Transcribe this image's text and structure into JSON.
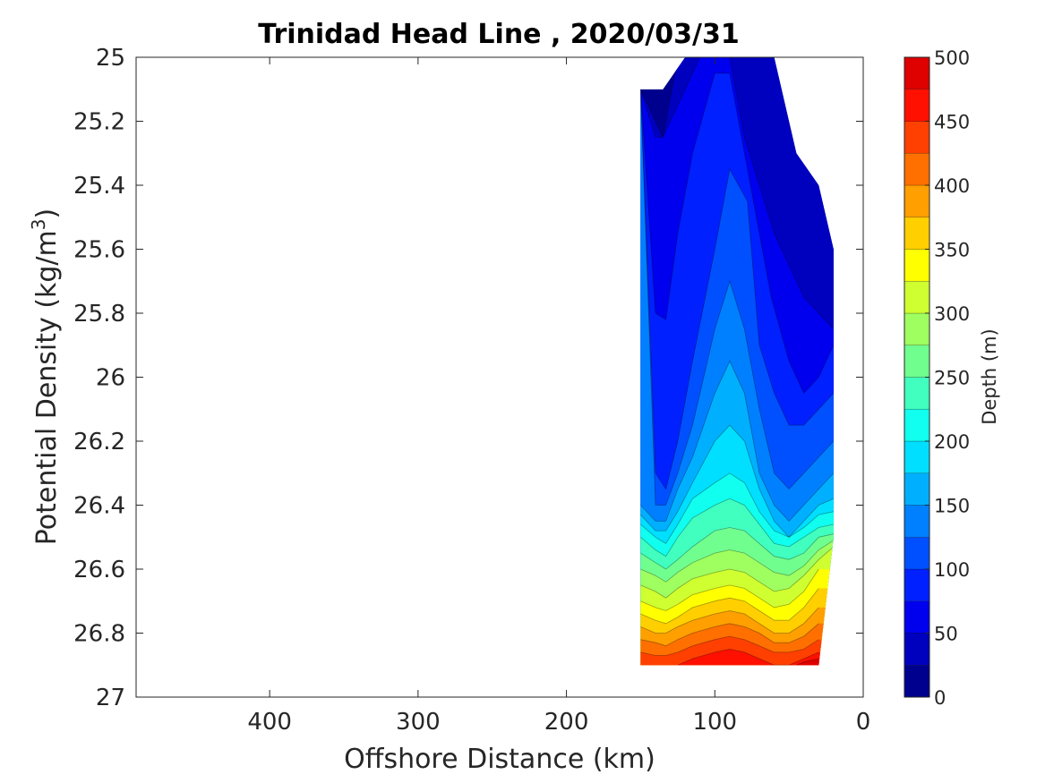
{
  "chart_data": {
    "type": "contour",
    "title": "Trinidad Head Line , 2020/03/31",
    "xlabel": "Offshore Distance (km)",
    "ylabel_main": "Potential Density (kg/m",
    "ylabel_sup": "3",
    "ylabel_end": ")",
    "xlim": [
      490,
      0
    ],
    "x_reversed": true,
    "ylim": [
      25,
      27
    ],
    "y_reversed": true,
    "xticks": [
      400,
      300,
      200,
      100,
      0
    ],
    "xtick_labels": [
      "400",
      "300",
      "200",
      "100",
      "0"
    ],
    "yticks": [
      25,
      25.2,
      25.4,
      25.6,
      25.8,
      26,
      26.2,
      26.4,
      26.6,
      26.8,
      27
    ],
    "ytick_labels": [
      "25",
      "25.2",
      "25.4",
      "25.6",
      "25.8",
      "26",
      "26.2",
      "26.4",
      "26.6",
      "26.8",
      "27"
    ],
    "colorbar": {
      "label": "Depth (m)",
      "min": 0,
      "max": 500,
      "ticks": [
        0,
        50,
        100,
        150,
        200,
        250,
        300,
        350,
        400,
        450,
        500
      ],
      "tick_labels": [
        "0",
        "50",
        "100",
        "150",
        "200",
        "250",
        "300",
        "350",
        "400",
        "450",
        "500"
      ],
      "level_step": 25,
      "colormap": "jet",
      "colors": [
        "#00008f",
        "#0000bf",
        "#0000ef",
        "#0020ff",
        "#0050ff",
        "#0080ff",
        "#00b0ff",
        "#00dfff",
        "#10ffef",
        "#40ffbf",
        "#70ff8f",
        "#9fff60",
        "#cfff30",
        "#ffff00",
        "#ffcf00",
        "#ff9f00",
        "#ff7000",
        "#ff4000",
        "#ff1000",
        "#df0000",
        "#af0000"
      ]
    },
    "data_region": {
      "x_offshore_km": [
        150,
        135,
        120,
        105,
        90,
        75,
        60,
        45,
        30,
        20
      ],
      "density_top": [
        25.1,
        25.1,
        25.0,
        25.0,
        25.0,
        25.0,
        25.0,
        25.3,
        25.4,
        25.6
      ],
      "density_bottom": [
        26.9,
        26.9,
        26.9,
        26.9,
        26.9,
        26.9,
        26.9,
        26.9,
        26.9,
        26.5
      ]
    },
    "contour_lines": [
      {
        "depth": 25,
        "x": [
          150,
          135,
          125,
          110,
          100,
          90,
          80,
          70,
          60,
          50,
          40,
          30,
          20
        ],
        "density": [
          25.1,
          25.25,
          25.0,
          25.0,
          25.0,
          25.0,
          25.0,
          25.0,
          25.0,
          25.0,
          25.0,
          25.0,
          25.0
        ]
      },
      {
        "depth": 50,
        "x": [
          150,
          140,
          135,
          125,
          110,
          95,
          90,
          80,
          70,
          60,
          50,
          40,
          30,
          20
        ],
        "density": [
          25.1,
          25.25,
          25.25,
          25.15,
          25.0,
          25.0,
          25.0,
          25.25,
          25.4,
          25.55,
          25.65,
          25.75,
          25.8,
          25.85
        ]
      },
      {
        "depth": 75,
        "x": [
          150,
          140,
          133,
          125,
          115,
          100,
          90,
          82,
          72,
          62,
          50,
          40,
          30,
          20
        ],
        "density": [
          25.1,
          25.8,
          25.82,
          25.55,
          25.3,
          25.05,
          25.05,
          25.25,
          25.5,
          25.75,
          25.95,
          26.05,
          26.0,
          25.9
        ]
      },
      {
        "depth": 100,
        "x": [
          150,
          140,
          133,
          125,
          115,
          100,
          90,
          78,
          70,
          60,
          50,
          40,
          30,
          20
        ],
        "density": [
          25.1,
          26.3,
          26.35,
          26.2,
          25.95,
          25.6,
          25.35,
          25.45,
          25.9,
          26.05,
          26.15,
          26.15,
          26.1,
          26.05
        ]
      },
      {
        "depth": 125,
        "x": [
          150,
          140,
          133,
          125,
          115,
          100,
          90,
          80,
          70,
          60,
          50,
          40,
          30,
          20
        ],
        "density": [
          25.1,
          26.4,
          26.4,
          26.3,
          26.15,
          25.85,
          25.7,
          25.85,
          26.1,
          26.3,
          26.35,
          26.3,
          26.25,
          26.2
        ]
      },
      {
        "depth": 150,
        "x": [
          150,
          140,
          133,
          125,
          115,
          100,
          90,
          80,
          70,
          60,
          50,
          40,
          30,
          20
        ],
        "density": [
          26.4,
          26.45,
          26.45,
          26.35,
          26.25,
          26.05,
          25.95,
          26.05,
          26.3,
          26.4,
          26.45,
          26.4,
          26.35,
          26.3
        ]
      },
      {
        "depth": 175,
        "x": [
          150,
          140,
          133,
          125,
          115,
          100,
          90,
          80,
          70,
          60,
          50,
          40,
          30,
          20
        ],
        "density": [
          26.43,
          26.48,
          26.48,
          26.42,
          26.33,
          26.2,
          26.15,
          26.2,
          26.35,
          26.45,
          26.5,
          26.45,
          26.4,
          26.38
        ]
      },
      {
        "depth": 200,
        "x": [
          150,
          140,
          133,
          125,
          115,
          100,
          90,
          80,
          70,
          60,
          50,
          40,
          30,
          20
        ],
        "density": [
          26.46,
          26.5,
          26.52,
          26.46,
          26.38,
          26.33,
          26.3,
          26.33,
          26.42,
          26.48,
          26.5,
          26.47,
          26.43,
          26.42
        ]
      },
      {
        "depth": 225,
        "x": [
          150,
          140,
          133,
          125,
          115,
          100,
          90,
          80,
          70,
          60,
          50,
          40,
          30,
          20
        ],
        "density": [
          26.5,
          26.54,
          26.56,
          26.5,
          26.44,
          26.4,
          26.38,
          26.4,
          26.46,
          26.52,
          26.53,
          26.5,
          26.47,
          26.46
        ]
      },
      {
        "depth": 250,
        "x": [
          150,
          140,
          133,
          125,
          115,
          100,
          90,
          80,
          70,
          60,
          50,
          40,
          30,
          20
        ],
        "density": [
          26.55,
          26.58,
          26.6,
          26.57,
          26.53,
          26.48,
          26.47,
          26.48,
          26.52,
          26.56,
          26.57,
          26.55,
          26.5,
          26.49
        ]
      },
      {
        "depth": 275,
        "x": [
          150,
          140,
          133,
          125,
          115,
          100,
          90,
          80,
          70,
          60,
          50,
          40,
          30,
          20
        ],
        "density": [
          26.6,
          26.62,
          26.64,
          26.61,
          26.58,
          26.55,
          26.54,
          26.55,
          26.58,
          26.61,
          26.62,
          26.59,
          26.54,
          26.51
        ]
      },
      {
        "depth": 300,
        "x": [
          150,
          140,
          133,
          125,
          115,
          100,
          90,
          80,
          70,
          60,
          50,
          40,
          30,
          20
        ],
        "density": [
          26.65,
          26.67,
          26.69,
          26.66,
          26.63,
          26.61,
          26.6,
          26.61,
          26.64,
          26.67,
          26.66,
          26.62,
          26.57,
          26.53
        ]
      },
      {
        "depth": 325,
        "x": [
          150,
          140,
          133,
          125,
          115,
          100,
          90,
          80,
          70,
          60,
          50,
          40,
          30
        ],
        "density": [
          26.7,
          26.72,
          26.73,
          26.71,
          26.68,
          26.66,
          26.65,
          26.66,
          26.69,
          26.72,
          26.71,
          26.67,
          26.6
        ]
      },
      {
        "depth": 350,
        "x": [
          150,
          140,
          133,
          125,
          115,
          100,
          90,
          80,
          70,
          60,
          50,
          40,
          30
        ],
        "density": [
          26.74,
          26.76,
          26.77,
          26.75,
          26.72,
          26.7,
          26.69,
          26.7,
          26.73,
          26.76,
          26.76,
          26.72,
          26.66
        ]
      },
      {
        "depth": 375,
        "x": [
          150,
          140,
          133,
          125,
          115,
          100,
          90,
          80,
          70,
          60,
          50,
          40,
          30
        ],
        "density": [
          26.78,
          26.8,
          26.8,
          26.78,
          26.76,
          26.74,
          26.73,
          26.74,
          26.77,
          26.8,
          26.8,
          26.77,
          26.72
        ]
      },
      {
        "depth": 400,
        "x": [
          150,
          140,
          133,
          125,
          115,
          100,
          90,
          80,
          70,
          60,
          50,
          40,
          30
        ],
        "density": [
          26.82,
          26.83,
          26.84,
          26.82,
          26.8,
          26.78,
          26.77,
          26.78,
          26.8,
          26.83,
          26.83,
          26.81,
          26.77
        ]
      },
      {
        "depth": 425,
        "x": [
          150,
          140,
          133,
          125,
          115,
          100,
          90,
          80,
          70,
          60,
          50,
          40,
          30
        ],
        "density": [
          26.86,
          26.87,
          26.87,
          26.86,
          26.84,
          26.82,
          26.81,
          26.82,
          26.84,
          26.86,
          26.86,
          26.85,
          26.82
        ]
      },
      {
        "depth": 450,
        "x": [
          125,
          115,
          100,
          90,
          80,
          70,
          60,
          50,
          40,
          30
        ],
        "density": [
          26.9,
          26.88,
          26.86,
          26.85,
          26.86,
          26.88,
          26.9,
          26.9,
          26.88,
          26.86
        ]
      },
      {
        "depth": 475,
        "x": [
          45,
          40,
          30
        ],
        "density": [
          26.9,
          26.89,
          26.88
        ]
      }
    ]
  }
}
